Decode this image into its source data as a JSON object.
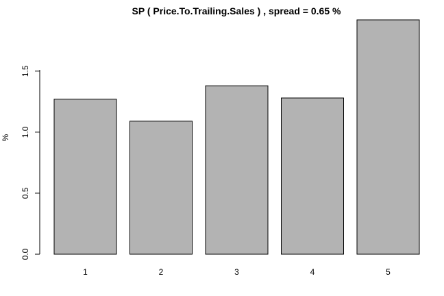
{
  "chart_data": {
    "type": "bar",
    "title": "SP ( Price.To.Trailing.Sales ) , spread = 0.65 %",
    "xlabel": "",
    "ylabel": "%",
    "categories": [
      "1",
      "2",
      "3",
      "4",
      "5"
    ],
    "values": [
      1.27,
      1.09,
      1.38,
      1.28,
      1.92
    ],
    "ylim": [
      0,
      1.92
    ],
    "yticks": [
      0.0,
      0.5,
      1.0,
      1.5
    ],
    "ytick_labels": [
      "0.0",
      "0.5",
      "1.0",
      "1.5"
    ],
    "grid": false,
    "legend": "none",
    "bar_color": "#b3b3b3"
  }
}
